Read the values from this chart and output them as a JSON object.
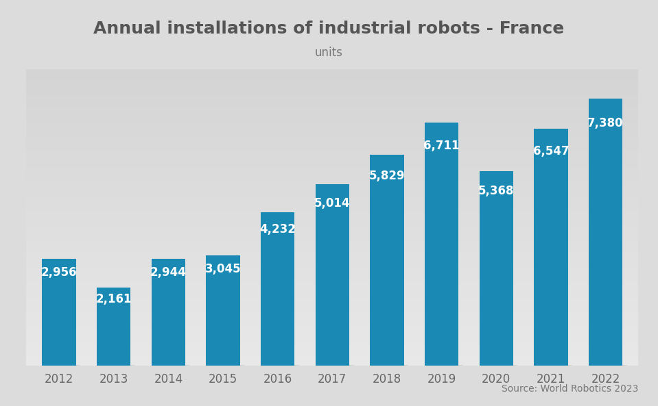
{
  "title": "Annual installations of industrial robots - France",
  "subtitle": "units",
  "source": "Source: World Robotics 2023",
  "categories": [
    "2012",
    "2013",
    "2014",
    "2015",
    "2016",
    "2017",
    "2018",
    "2019",
    "2020",
    "2021",
    "2022"
  ],
  "values": [
    2956,
    2161,
    2944,
    3045,
    4232,
    5014,
    5829,
    6711,
    5368,
    6547,
    7380
  ],
  "bar_color": "#1a8ab5",
  "bar_color_dark": "#1475a0",
  "title_color": "#555555",
  "subtitle_color": "#777777",
  "source_color": "#777777",
  "label_color": "#ffffff",
  "tick_color": "#666666",
  "bg_color_top": "#e8e8e8",
  "bg_color_bottom": "#d0d0d0",
  "title_fontsize": 18,
  "subtitle_fontsize": 12,
  "label_fontsize": 12,
  "tick_fontsize": 12,
  "source_fontsize": 10,
  "ylim": [
    0,
    8200
  ]
}
